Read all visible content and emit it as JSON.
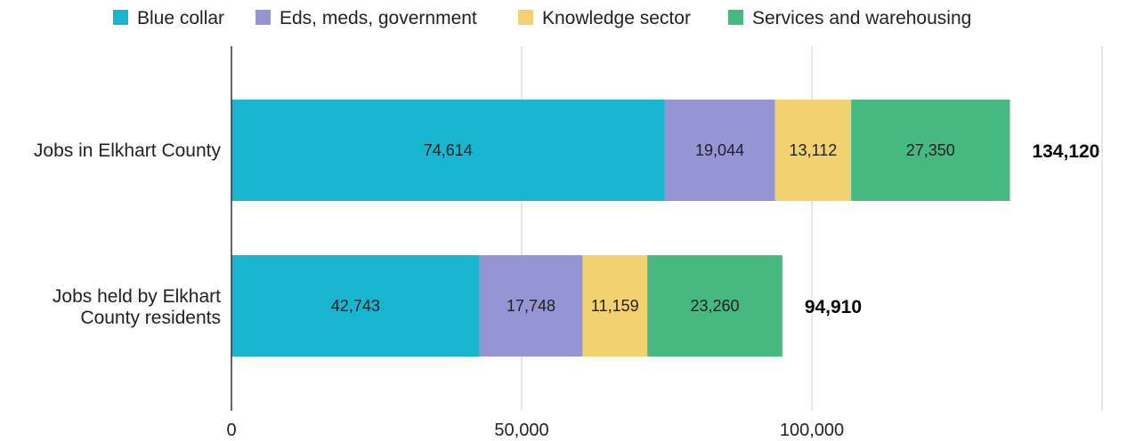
{
  "chart_data": {
    "type": "bar",
    "orientation": "horizontal",
    "stacked": true,
    "categories": [
      "Jobs in Elkhart County",
      "Jobs held by Elkhart County residents"
    ],
    "series": [
      {
        "name": "Blue collar",
        "color": "#17B5CF",
        "values": [
          74614,
          42743
        ],
        "labels": [
          "74,614",
          "42,743"
        ]
      },
      {
        "name": "Eds, meds, government",
        "color": "#9595D3",
        "values": [
          19044,
          17748
        ],
        "labels": [
          "19,044",
          "17,748"
        ]
      },
      {
        "name": "Knowledge sector",
        "color": "#F2D170",
        "values": [
          13112,
          11159
        ],
        "labels": [
          "13,112",
          "11,159"
        ]
      },
      {
        "name": "Services and warehousing",
        "color": "#47B881",
        "values": [
          27350,
          23260
        ],
        "labels": [
          "27,350",
          "23,260"
        ]
      }
    ],
    "totals": [
      134120,
      94910
    ],
    "total_labels": [
      "134,120",
      "94,910"
    ],
    "xlim": [
      0,
      150000
    ],
    "xticks": [
      0,
      50000,
      100000,
      150000
    ],
    "xtick_labels": [
      "0",
      "50,000",
      "100,000",
      ""
    ],
    "grid": true,
    "legend_position": "top"
  }
}
